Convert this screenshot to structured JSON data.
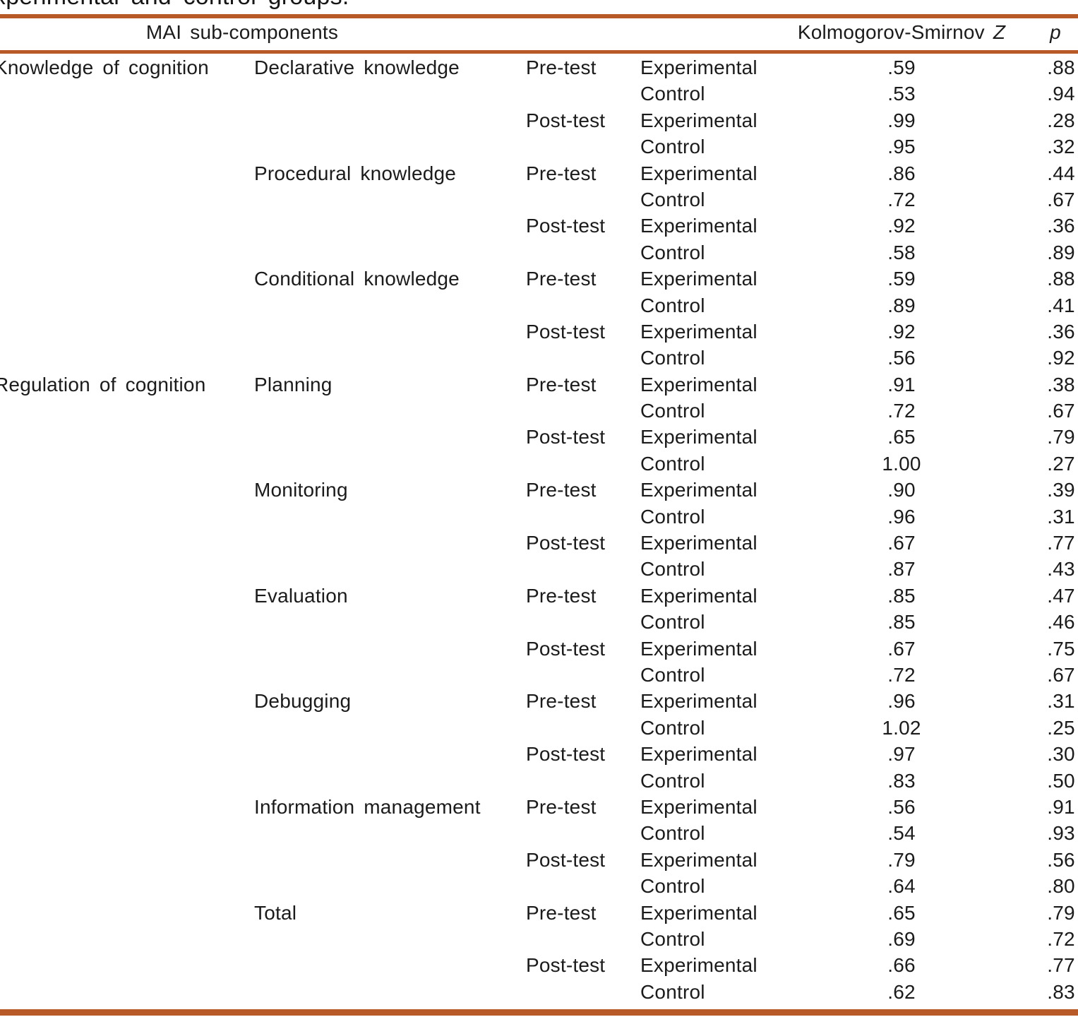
{
  "caption": {
    "visible_text": "xperimental and control groups."
  },
  "colors": {
    "rule": "#b85a28",
    "text": "#1b1b1b"
  },
  "table": {
    "header": {
      "main": "MAI sub-components",
      "z_label": "Kolmogorov-Smirnov",
      "z_symbol": "Z",
      "p_label": "p"
    },
    "sections": [
      {
        "category": "Knowledge of cognition",
        "subcomponents": [
          {
            "name": "Declarative knowledge",
            "tests": [
              {
                "test": "Pre-test",
                "groups": [
                  {
                    "group": "Experimental",
                    "z": ".59",
                    "p": ".88"
                  },
                  {
                    "group": "Control",
                    "z": ".53",
                    "p": ".94"
                  }
                ]
              },
              {
                "test": "Post-test",
                "groups": [
                  {
                    "group": "Experimental",
                    "z": ".99",
                    "p": ".28"
                  },
                  {
                    "group": "Control",
                    "z": ".95",
                    "p": ".32"
                  }
                ]
              }
            ]
          },
          {
            "name": "Procedural knowledge",
            "tests": [
              {
                "test": "Pre-test",
                "groups": [
                  {
                    "group": "Experimental",
                    "z": ".86",
                    "p": ".44"
                  },
                  {
                    "group": "Control",
                    "z": ".72",
                    "p": ".67"
                  }
                ]
              },
              {
                "test": "Post-test",
                "groups": [
                  {
                    "group": "Experimental",
                    "z": ".92",
                    "p": ".36"
                  },
                  {
                    "group": "Control",
                    "z": ".58",
                    "p": ".89"
                  }
                ]
              }
            ]
          },
          {
            "name": "Conditional knowledge",
            "tests": [
              {
                "test": "Pre-test",
                "groups": [
                  {
                    "group": "Experimental",
                    "z": ".59",
                    "p": ".88"
                  },
                  {
                    "group": "Control",
                    "z": ".89",
                    "p": ".41"
                  }
                ]
              },
              {
                "test": "Post-test",
                "groups": [
                  {
                    "group": "Experimental",
                    "z": ".92",
                    "p": ".36"
                  },
                  {
                    "group": "Control",
                    "z": ".56",
                    "p": ".92"
                  }
                ]
              }
            ]
          }
        ]
      },
      {
        "category": "Regulation of cognition",
        "subcomponents": [
          {
            "name": "Planning",
            "tests": [
              {
                "test": "Pre-test",
                "groups": [
                  {
                    "group": "Experimental",
                    "z": ".91",
                    "p": ".38"
                  },
                  {
                    "group": "Control",
                    "z": ".72",
                    "p": ".67"
                  }
                ]
              },
              {
                "test": "Post-test",
                "groups": [
                  {
                    "group": "Experimental",
                    "z": ".65",
                    "p": ".79"
                  },
                  {
                    "group": "Control",
                    "z": "1.00",
                    "p": ".27"
                  }
                ]
              }
            ]
          },
          {
            "name": "Monitoring",
            "tests": [
              {
                "test": "Pre-test",
                "groups": [
                  {
                    "group": "Experimental",
                    "z": ".90",
                    "p": ".39"
                  },
                  {
                    "group": "Control",
                    "z": ".96",
                    "p": ".31"
                  }
                ]
              },
              {
                "test": "Post-test",
                "groups": [
                  {
                    "group": "Experimental",
                    "z": ".67",
                    "p": ".77"
                  },
                  {
                    "group": "Control",
                    "z": ".87",
                    "p": ".43"
                  }
                ]
              }
            ]
          },
          {
            "name": "Evaluation",
            "tests": [
              {
                "test": "Pre-test",
                "groups": [
                  {
                    "group": "Experimental",
                    "z": ".85",
                    "p": ".47"
                  },
                  {
                    "group": "Control",
                    "z": ".85",
                    "p": ".46"
                  }
                ]
              },
              {
                "test": "Post-test",
                "groups": [
                  {
                    "group": "Experimental",
                    "z": ".67",
                    "p": ".75"
                  },
                  {
                    "group": "Control",
                    "z": ".72",
                    "p": ".67"
                  }
                ]
              }
            ]
          },
          {
            "name": "Debugging",
            "tests": [
              {
                "test": "Pre-test",
                "groups": [
                  {
                    "group": "Experimental",
                    "z": ".96",
                    "p": ".31"
                  },
                  {
                    "group": "Control",
                    "z": "1.02",
                    "p": ".25"
                  }
                ]
              },
              {
                "test": "Post-test",
                "groups": [
                  {
                    "group": "Experimental",
                    "z": ".97",
                    "p": ".30"
                  },
                  {
                    "group": "Control",
                    "z": ".83",
                    "p": ".50"
                  }
                ]
              }
            ]
          },
          {
            "name": "Information management",
            "tests": [
              {
                "test": "Pre-test",
                "groups": [
                  {
                    "group": "Experimental",
                    "z": ".56",
                    "p": ".91"
                  },
                  {
                    "group": "Control",
                    "z": ".54",
                    "p": ".93"
                  }
                ]
              },
              {
                "test": "Post-test",
                "groups": [
                  {
                    "group": "Experimental",
                    "z": ".79",
                    "p": ".56"
                  },
                  {
                    "group": "Control",
                    "z": ".64",
                    "p": ".80"
                  }
                ]
              }
            ]
          },
          {
            "name": "Total",
            "tests": [
              {
                "test": "Pre-test",
                "groups": [
                  {
                    "group": "Experimental",
                    "z": ".65",
                    "p": ".79"
                  },
                  {
                    "group": "Control",
                    "z": ".69",
                    "p": ".72"
                  }
                ]
              },
              {
                "test": "Post-test",
                "groups": [
                  {
                    "group": "Experimental",
                    "z": ".66",
                    "p": ".77"
                  },
                  {
                    "group": "Control",
                    "z": ".62",
                    "p": ".83"
                  }
                ]
              }
            ]
          }
        ]
      }
    ]
  }
}
